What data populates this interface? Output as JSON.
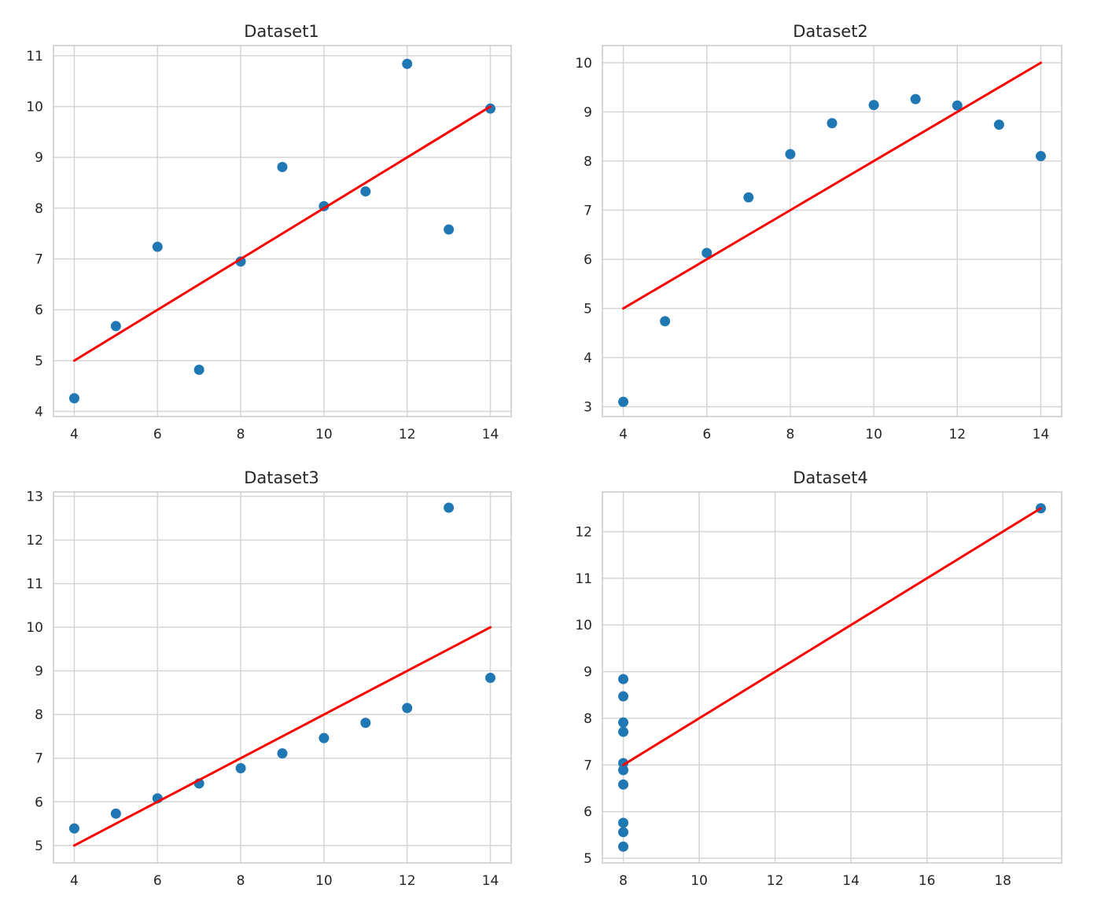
{
  "figure": {
    "background": "#ffffff",
    "axes_face": "#ffffff",
    "grid_color": "#d5d5d5",
    "spine_color": "#c9c9c9",
    "marker_color": "#1f77b4",
    "fit_line_color": "#ff0000"
  },
  "chart_data": [
    {
      "type": "scatter",
      "title": "Dataset1",
      "xlabel": "",
      "ylabel": "",
      "grid": true,
      "xlim": [
        3.5,
        14.5
      ],
      "ylim": [
        3.9,
        11.2
      ],
      "xticks": [
        4,
        6,
        8,
        10,
        12,
        14
      ],
      "yticks": [
        4,
        5,
        6,
        7,
        8,
        9,
        10,
        11
      ],
      "x": [
        10,
        8,
        13,
        9,
        11,
        14,
        6,
        4,
        12,
        7,
        5
      ],
      "y": [
        8.04,
        6.95,
        7.58,
        8.81,
        8.33,
        9.96,
        7.24,
        4.26,
        10.84,
        4.82,
        5.68
      ],
      "fit_line": {
        "x": [
          4,
          14
        ],
        "y": [
          5.0,
          10.0
        ]
      }
    },
    {
      "type": "scatter",
      "title": "Dataset2",
      "xlabel": "",
      "ylabel": "",
      "grid": true,
      "xlim": [
        3.5,
        14.5
      ],
      "ylim": [
        2.8,
        10.35
      ],
      "xticks": [
        4,
        6,
        8,
        10,
        12,
        14
      ],
      "yticks": [
        3,
        4,
        5,
        6,
        7,
        8,
        9,
        10
      ],
      "x": [
        10,
        8,
        13,
        9,
        11,
        14,
        6,
        4,
        12,
        7,
        5
      ],
      "y": [
        9.14,
        8.14,
        8.74,
        8.77,
        9.26,
        8.1,
        6.13,
        3.1,
        9.13,
        7.26,
        4.74
      ],
      "fit_line": {
        "x": [
          4,
          14
        ],
        "y": [
          5.0,
          10.0
        ]
      }
    },
    {
      "type": "scatter",
      "title": "Dataset3",
      "xlabel": "",
      "ylabel": "",
      "grid": true,
      "xlim": [
        3.5,
        14.5
      ],
      "ylim": [
        4.6,
        13.1
      ],
      "xticks": [
        4,
        6,
        8,
        10,
        12,
        14
      ],
      "yticks": [
        5,
        6,
        7,
        8,
        9,
        10,
        11,
        12,
        13
      ],
      "x": [
        10,
        8,
        13,
        9,
        11,
        14,
        6,
        4,
        12,
        7,
        5
      ],
      "y": [
        7.46,
        6.77,
        12.74,
        7.11,
        7.81,
        8.84,
        6.08,
        5.39,
        8.15,
        6.42,
        5.73
      ],
      "fit_line": {
        "x": [
          4,
          14
        ],
        "y": [
          5.0,
          10.0
        ]
      }
    },
    {
      "type": "scatter",
      "title": "Dataset4",
      "xlabel": "",
      "ylabel": "",
      "grid": true,
      "xlim": [
        7.45,
        19.55
      ],
      "ylim": [
        4.9,
        12.85
      ],
      "xticks": [
        8,
        10,
        12,
        14,
        16,
        18
      ],
      "yticks": [
        5,
        6,
        7,
        8,
        9,
        10,
        11,
        12
      ],
      "x": [
        8,
        8,
        8,
        8,
        8,
        8,
        8,
        19,
        8,
        8,
        8
      ],
      "y": [
        6.58,
        5.76,
        7.71,
        8.84,
        8.47,
        7.04,
        5.25,
        12.5,
        5.56,
        7.91,
        6.89
      ],
      "fit_line": {
        "x": [
          8,
          19
        ],
        "y": [
          7.0,
          12.5
        ]
      }
    }
  ]
}
